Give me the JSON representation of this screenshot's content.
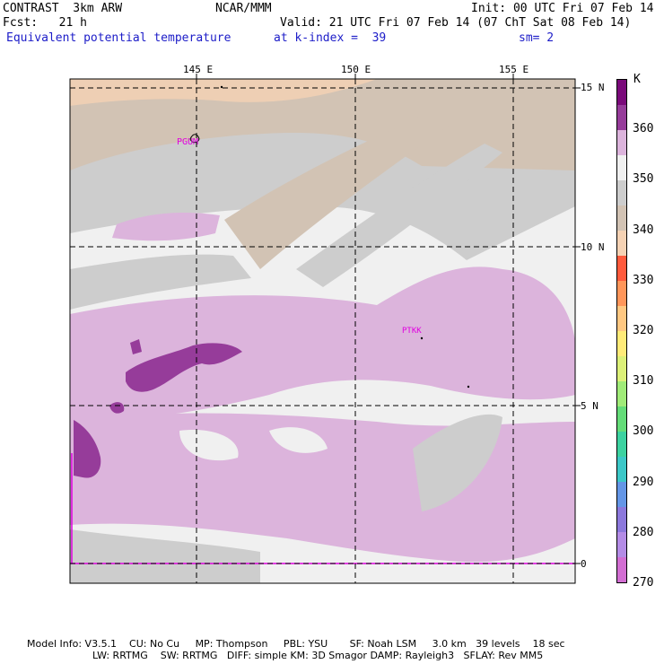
{
  "header": {
    "model": "CONTRAST  3km ARW",
    "center": "NCAR/MMM",
    "init": "Init: 00 UTC Fri 07 Feb 14",
    "fcst": "Fcst:   21 h",
    "valid": "Valid: 21 UTC Fri 07 Feb 14 (07 ChT Sat 08 Feb 14)",
    "field": "Equivalent potential temperature",
    "level": "at k-index =  39",
    "smooth": "sm= 2"
  },
  "map": {
    "lon_labels": [
      "145 E",
      "150 E",
      "155 E"
    ],
    "lat_labels": [
      "15 N",
      "10 N",
      "5 N",
      "0"
    ],
    "stations": [
      "PGUM",
      "PTKK"
    ]
  },
  "colorbar": {
    "unit": "K",
    "labels": [
      "360",
      "350",
      "340",
      "330",
      "320",
      "310",
      "300",
      "290",
      "280",
      "270"
    ],
    "colors": [
      "#7a0a7a",
      "#963c9a",
      "#dcb4dc",
      "#f0f0f0",
      "#cdcdcd",
      "#d2c3b4",
      "#f5d2b4",
      "#ff5a3c",
      "#ff965a",
      "#ffc882",
      "#ffeb78",
      "#dcf078",
      "#a0eb78",
      "#64dc78",
      "#3cd2a0",
      "#3cc8c8",
      "#6496e6",
      "#8c78dc",
      "#b48ce6",
      "#d26ed2"
    ]
  },
  "footer": {
    "line1": "Model Info: V3.5.1    CU: No Cu     MP: Thompson     PBL: YSU       SF: Noah LSM     3.0 km   39 levels    18 sec",
    "line2": "LW: RRTMG    SW: RRTMG   DIFF: simple KM: 3D Smagor DAMP: Rayleigh3   SFLAY: Rev MM5"
  }
}
